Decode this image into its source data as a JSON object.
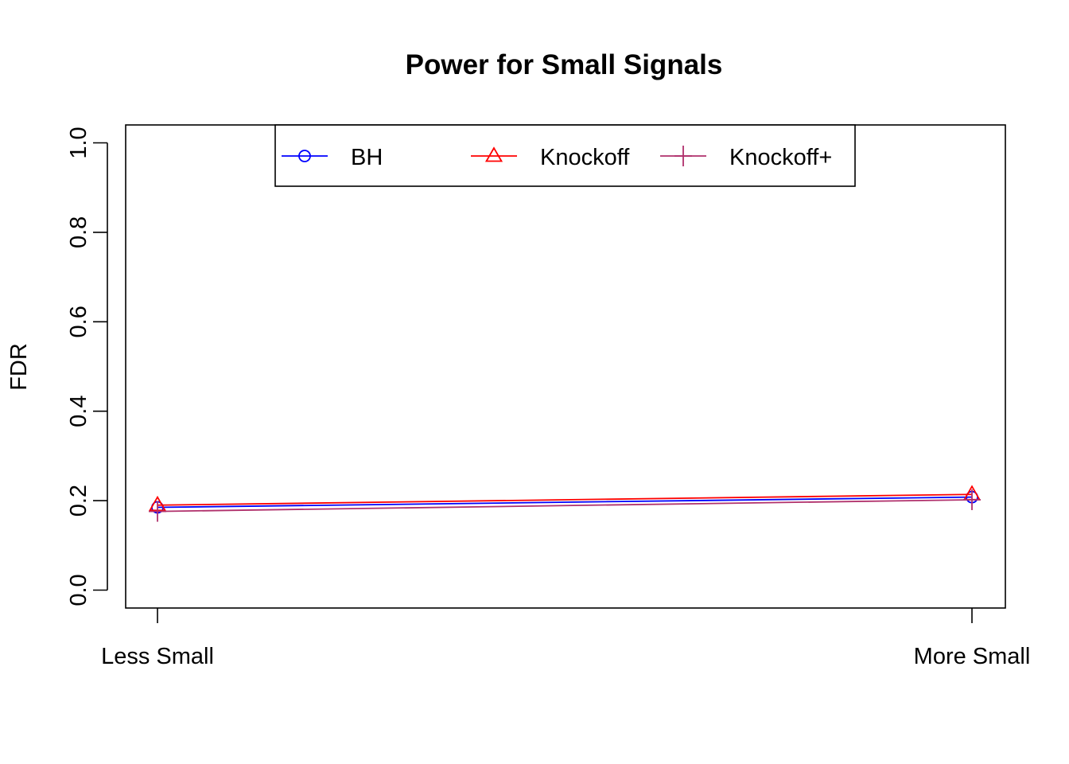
{
  "chart_data": {
    "type": "line",
    "title": "Power for Small Signals",
    "xlabel": "",
    "ylabel": "FDR",
    "categories": [
      "Less Small",
      "More Small"
    ],
    "ylim": [
      0.0,
      1.0
    ],
    "yticks": [
      "0.0",
      "0.2",
      "0.4",
      "0.6",
      "0.8",
      "1.0"
    ],
    "grid": false,
    "legend_position": "top-center",
    "series": [
      {
        "name": "BH",
        "values": [
          0.185,
          0.208
        ],
        "color": "#0000FF",
        "marker": "circle"
      },
      {
        "name": "Knockoff",
        "values": [
          0.19,
          0.214
        ],
        "color": "#FF0000",
        "marker": "triangle"
      },
      {
        "name": "Knockoff+",
        "values": [
          0.176,
          0.202
        ],
        "color": "#B0306B",
        "marker": "plus"
      }
    ]
  }
}
